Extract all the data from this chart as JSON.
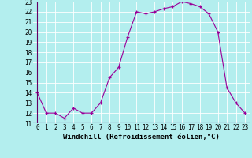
{
  "hours": [
    0,
    1,
    2,
    3,
    4,
    5,
    6,
    7,
    8,
    9,
    10,
    11,
    12,
    13,
    14,
    15,
    16,
    17,
    18,
    19,
    20,
    21,
    22,
    23
  ],
  "temps": [
    14,
    12,
    12,
    11.5,
    12.5,
    12,
    12,
    13,
    15.5,
    16.5,
    19.5,
    22,
    21.8,
    22,
    22.3,
    22.5,
    23,
    22.8,
    22.5,
    21.8,
    20,
    14.5,
    13,
    12
  ],
  "ylim": [
    11,
    23
  ],
  "xlim": [
    -0.5,
    23.5
  ],
  "yticks": [
    11,
    12,
    13,
    14,
    15,
    16,
    17,
    18,
    19,
    20,
    21,
    22,
    23
  ],
  "xticks": [
    0,
    1,
    2,
    3,
    4,
    5,
    6,
    7,
    8,
    9,
    10,
    11,
    12,
    13,
    14,
    15,
    16,
    17,
    18,
    19,
    20,
    21,
    22,
    23
  ],
  "xlabel": "Windchill (Refroidissement éolien,°C)",
  "line_color": "#990099",
  "bg_color": "#b3eeee",
  "grid_color": "#ffffff",
  "tick_fontsize": 5.5,
  "label_fontsize": 6.5
}
